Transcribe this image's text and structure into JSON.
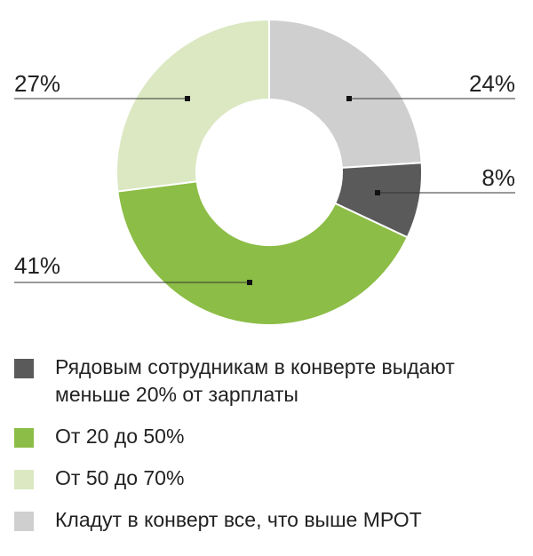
{
  "chart_data": {
    "type": "pie",
    "donut": true,
    "categories": [
      "Кладут в конверт все, что выше МРОТ",
      "Рядовым сотрудникам в конверте выдают меньше 20% от зарплаты",
      "От 20 до 50%",
      "От 50 до 70%"
    ],
    "values": [
      24,
      8,
      41,
      27
    ],
    "value_labels": [
      "24%",
      "8%",
      "41%",
      "27%"
    ],
    "colors": [
      "#cfcfcf",
      "#5a5a5a",
      "#8cbd46",
      "#dbe8c2"
    ],
    "title": "",
    "legend_position": "bottom"
  },
  "legend": {
    "items": [
      {
        "label": "Рядовым сотрудникам в конверте выдают меньше 20% от зарплаты",
        "color": "#5a5a5a"
      },
      {
        "label": "От 20 до 50%",
        "color": "#8cbd46"
      },
      {
        "label": "От 50 до 70%",
        "color": "#dbe8c2"
      },
      {
        "label": "Кладут в конверт все, что выше МРОТ",
        "color": "#cfcfcf"
      }
    ]
  }
}
